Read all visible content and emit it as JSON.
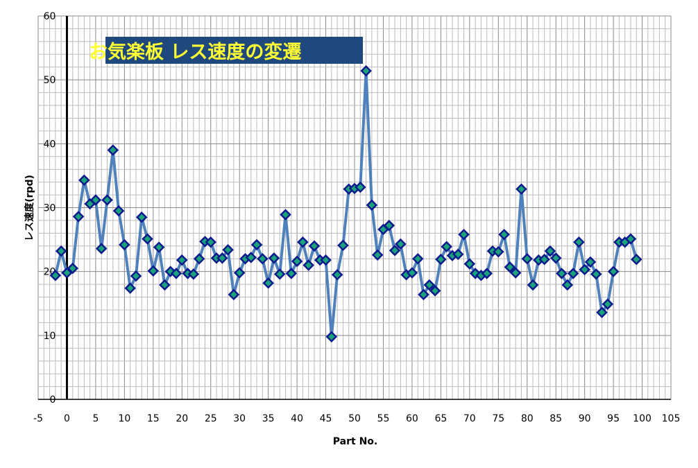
{
  "chart_data": {
    "type": "line",
    "title": "お気楽板 レス速度の変遷",
    "xlabel": "Part No.",
    "ylabel": "レス速度(rpd)",
    "xlim": [
      -5,
      105
    ],
    "ylim": [
      0,
      60
    ],
    "xticks": [
      -5,
      0,
      5,
      10,
      15,
      20,
      25,
      30,
      35,
      40,
      45,
      50,
      55,
      60,
      65,
      70,
      75,
      80,
      85,
      90,
      95,
      100,
      105
    ],
    "yticks": [
      0,
      10,
      20,
      30,
      40,
      50,
      60
    ],
    "grid": true,
    "legend": "none",
    "colors": {
      "line": "#4f81bd",
      "marker_fill": "#1aa37a",
      "marker_edge": "#0a1a8c",
      "title_bg": "#1f497d",
      "title_text": "#ffff33"
    },
    "marker": "diamond",
    "x": [
      -2,
      -1,
      0,
      1,
      2,
      3,
      4,
      5,
      6,
      7,
      8,
      9,
      10,
      11,
      12,
      13,
      14,
      15,
      16,
      17,
      18,
      19,
      20,
      21,
      22,
      23,
      24,
      25,
      26,
      27,
      28,
      29,
      30,
      31,
      32,
      33,
      34,
      35,
      36,
      37,
      38,
      39,
      40,
      41,
      42,
      43,
      44,
      45,
      46,
      47,
      48,
      49,
      50,
      51,
      52,
      53,
      54,
      55,
      56,
      57,
      58,
      59,
      60,
      61,
      62,
      63,
      64,
      65,
      66,
      67,
      68,
      69,
      70,
      71,
      72,
      73,
      74,
      75,
      76,
      77,
      78,
      79,
      80,
      81,
      82,
      83,
      84,
      85,
      86,
      87,
      88,
      89,
      90,
      91,
      92,
      93,
      94,
      95,
      96,
      97,
      98,
      99
    ],
    "y": [
      19.4,
      23.2,
      19.8,
      20.5,
      28.6,
      34.3,
      30.6,
      31.2,
      23.6,
      31.2,
      39.0,
      29.5,
      24.2,
      17.4,
      19.3,
      28.5,
      25.1,
      20.1,
      23.8,
      17.9,
      20.0,
      19.7,
      21.8,
      19.7,
      19.6,
      22.0,
      24.7,
      24.6,
      22.1,
      22.1,
      23.4,
      16.4,
      19.8,
      22.0,
      22.2,
      24.2,
      22.0,
      18.2,
      22.1,
      19.6,
      28.9,
      19.7,
      21.6,
      24.6,
      21.0,
      24.0,
      21.8,
      21.8,
      9.8,
      19.5,
      24.1,
      32.9,
      33.0,
      33.2,
      51.4,
      30.4,
      22.6,
      26.6,
      27.2,
      23.3,
      24.3,
      19.5,
      19.8,
      22.0,
      16.4,
      17.9,
      17.0,
      21.9,
      23.9,
      22.5,
      22.7,
      25.8,
      21.2,
      19.7,
      19.4,
      19.7,
      23.2,
      23.1,
      25.8,
      20.7,
      19.8,
      32.9,
      22.0,
      17.9,
      21.8,
      21.9,
      23.2,
      22.1,
      19.7,
      17.9,
      19.7,
      24.6,
      20.3,
      21.5,
      19.6,
      13.6,
      14.9,
      20.0,
      24.6,
      24.6,
      25.1,
      21.9
    ]
  }
}
